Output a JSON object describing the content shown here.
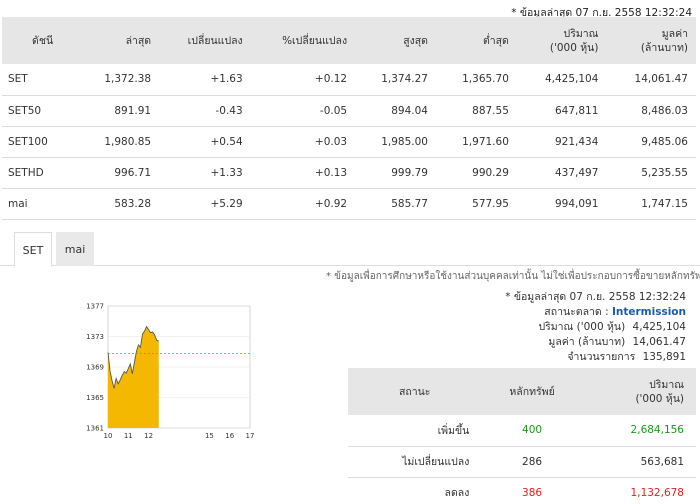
{
  "top_note": "* ข้อมูลล่าสุด 07 ก.ย. 2558 12:32:24",
  "index_table": {
    "headers": [
      "ดัชนี",
      "ล่าสุด",
      "เปลี่ยนแปลง",
      "%เปลี่ยนแปลง",
      "สูงสุด",
      "ต่ำสุด",
      "ปริมาณ ('000 หุ้น)",
      "มูลค่า (ล้านบาท)"
    ],
    "header_lines": [
      [
        "ดัชนี"
      ],
      [
        "ล่าสุด"
      ],
      [
        "เปลี่ยนแปลง"
      ],
      [
        "%เปลี่ยนแปลง"
      ],
      [
        "สูงสุด"
      ],
      [
        "ต่ำสุด"
      ],
      [
        "ปริมาณ",
        "('000 หุ้น)"
      ],
      [
        "มูลค่า",
        "(ล้านบาท)"
      ]
    ],
    "rows": [
      {
        "name": "SET",
        "last": "1,372.38",
        "change": "+1.63",
        "pct": "+0.12",
        "high": "1,374.27",
        "low": "1,365.70",
        "volume": "4,425,104",
        "value": "14,061.47",
        "link": false,
        "direction": "up"
      },
      {
        "name": "SET50",
        "last": "891.91",
        "change": "-0.43",
        "pct": "-0.05",
        "high": "894.04",
        "low": "887.55",
        "volume": "647,811",
        "value": "8,486.03",
        "link": true,
        "direction": "down"
      },
      {
        "name": "SET100",
        "last": "1,980.85",
        "change": "+0.54",
        "pct": "+0.03",
        "high": "1,985.00",
        "low": "1,971.60",
        "volume": "921,434",
        "value": "9,485.06",
        "link": true,
        "direction": "up"
      },
      {
        "name": "SETHD",
        "last": "996.71",
        "change": "+1.33",
        "pct": "+0.13",
        "high": "999.79",
        "low": "990.29",
        "volume": "437,497",
        "value": "5,235.55",
        "link": true,
        "direction": "up"
      },
      {
        "name": "mai",
        "last": "583.28",
        "change": "+5.29",
        "pct": "+0.92",
        "high": "585.77",
        "low": "577.95",
        "volume": "994,091",
        "value": "1,747.15",
        "link": false,
        "direction": "up"
      }
    ]
  },
  "tabs": [
    {
      "label": "SET",
      "active": true
    },
    {
      "label": "mai",
      "active": false
    }
  ],
  "info": {
    "disclaimer": "* ข้อมูลเพื่อการศึกษาหรือใช้งานส่วนบุคคลเท่านั้น ไม่ใช่เพื่อประกอบการซื้อขายหลักทรัพย์",
    "updated": "* ข้อมูลล่าสุด 07 ก.ย. 2558 12:32:24",
    "status_label": "สถานะตลาด :",
    "status_value": "Intermission",
    "volume_label": "ปริมาณ ('000 หุ้น)",
    "volume_value": "4,425,104",
    "value_label": "มูลค่า (ล้านบาท)",
    "value_value": "14,061.47",
    "trades_label": "จำนวนรายการ",
    "trades_value": "135,891"
  },
  "breadth_table": {
    "header_lines": [
      [
        "สถานะ"
      ],
      [
        "หลักทรัพย์"
      ],
      [
        "ปริมาณ",
        "('000 หุ้น)"
      ]
    ],
    "rows": [
      {
        "status": "เพิ่มขึ้น",
        "count": "400",
        "volume": "2,684,156",
        "color": "#1a9a1a"
      },
      {
        "status": "ไม่เปลี่ยนแปลง",
        "count": "286",
        "volume": "563,681",
        "color": "#333333"
      },
      {
        "status": "ลดลง",
        "count": "386",
        "volume": "1,132,678",
        "color": "#dd2222"
      }
    ]
  },
  "colors": {
    "up": "#1a9a1a",
    "down": "#dd2222",
    "link": "#3b7fc4",
    "area_fill": "#f5b800",
    "status": "#1a5ab0"
  },
  "chart_data": {
    "type": "area",
    "x": [
      10,
      10.1,
      10.2,
      10.3,
      10.4,
      10.5,
      10.6,
      10.7,
      10.8,
      10.9,
      11,
      11.1,
      11.2,
      11.3,
      11.4,
      11.5,
      11.6,
      11.7,
      11.8,
      11.9,
      12,
      12.1,
      12.2,
      12.3,
      12.4,
      12.5
    ],
    "y": [
      1370.9,
      1368.5,
      1367.2,
      1366.2,
      1367.5,
      1366.8,
      1367.3,
      1367.9,
      1368.4,
      1368.2,
      1368.8,
      1369.4,
      1368.1,
      1369.6,
      1371.0,
      1371.9,
      1371.6,
      1373.3,
      1373.7,
      1374.3,
      1373.9,
      1373.5,
      1373.6,
      1373.2,
      1372.5,
      1372.4
    ],
    "xticks": [
      10,
      11,
      12,
      13,
      14,
      15,
      16,
      17
    ],
    "xtick_labels": [
      "10",
      "11",
      "12",
      "",
      "",
      "15",
      "16",
      "17"
    ],
    "yticks": [
      1361,
      1365,
      1369,
      1373,
      1377
    ],
    "xlim": [
      10,
      17
    ],
    "ylim": [
      1361,
      1377
    ],
    "reference": 1370.75
  }
}
